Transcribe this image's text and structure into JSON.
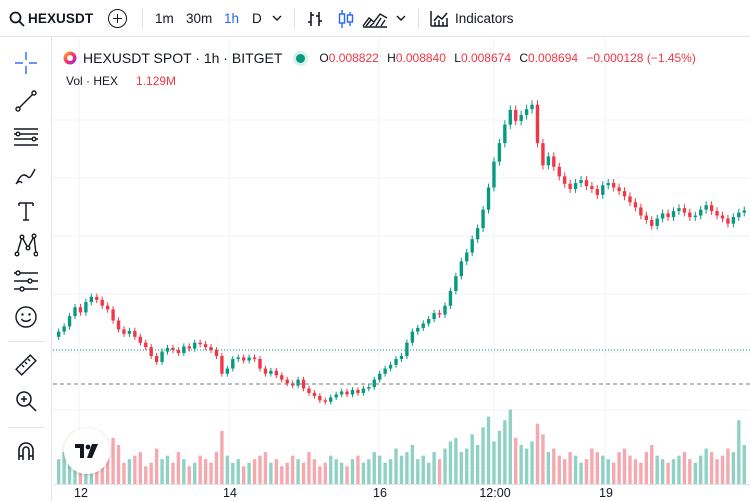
{
  "toolbar": {
    "symbol": "HEXUSDT",
    "intervals": [
      "1m",
      "30m",
      "1h",
      "D"
    ],
    "active_interval": "1h",
    "indicators_label": "Indicators"
  },
  "legend": {
    "title": "HEXUSDT SPOT · 1h · BITGET",
    "o_label": "O",
    "o_value": "0.008822",
    "h_label": "H",
    "h_value": "0.008840",
    "l_label": "L",
    "l_value": "0.008674",
    "c_label": "C",
    "c_value": "0.008694",
    "change": "−0.000128 (−1.45%)",
    "vol_label": "Vol · HEX",
    "vol_value": "1.129M"
  },
  "time_axis": {
    "ticks": [
      "12",
      "14",
      "16",
      "12:00",
      "19"
    ]
  },
  "colors": {
    "up": "#089981",
    "down": "#f23645",
    "up_volume": "#8fd1c5",
    "down_volume": "#f5a8ae",
    "active": "#2962ff"
  },
  "chart_data": {
    "type": "candlestick",
    "title": "HEXUSDT SPOT · 1h · BITGET",
    "x_ticks": [
      "12",
      "14",
      "16",
      "12:00",
      "19"
    ],
    "last_close": 0.008694,
    "series": [
      {
        "name": "price",
        "values": [
          0.00705,
          0.00712,
          0.00726,
          0.00738,
          0.00731,
          0.00745,
          0.00752,
          0.00748,
          0.0074,
          0.00735,
          0.0072,
          0.00708,
          0.00702,
          0.00706,
          0.00698,
          0.0069,
          0.00684,
          0.00672,
          0.00664,
          0.00678,
          0.00683,
          0.0068,
          0.00676,
          0.00685,
          0.00682,
          0.0069,
          0.00688,
          0.00684,
          0.0068,
          0.00672,
          0.00648,
          0.00655,
          0.00668,
          0.0067,
          0.00666,
          0.0067,
          0.00668,
          0.00655,
          0.00648,
          0.00652,
          0.00646,
          0.0064,
          0.00635,
          0.00632,
          0.0064,
          0.00628,
          0.00622,
          0.00618,
          0.00612,
          0.0061,
          0.00616,
          0.0062,
          0.00624,
          0.0062,
          0.00626,
          0.00622,
          0.00628,
          0.0063,
          0.0064,
          0.00648,
          0.00655,
          0.0066,
          0.00668,
          0.00672,
          0.0069,
          0.00705,
          0.0071,
          0.00716,
          0.00722,
          0.0073,
          0.00728,
          0.0074,
          0.0076,
          0.0078,
          0.008,
          0.00812,
          0.0083,
          0.00845,
          0.0087,
          0.009,
          0.00935,
          0.0096,
          0.00985,
          0.01005,
          0.0099,
          0.00998,
          0.01006,
          0.01012,
          0.0096,
          0.0093,
          0.00942,
          0.00928,
          0.00915,
          0.00905,
          0.00898,
          0.00906,
          0.0091,
          0.00902,
          0.00898,
          0.0089,
          0.00903,
          0.00906,
          0.009,
          0.00895,
          0.00888,
          0.0088,
          0.00873,
          0.00862,
          0.00856,
          0.00848,
          0.00858,
          0.00865,
          0.0086,
          0.00868,
          0.00872,
          0.00866,
          0.0086,
          0.00862,
          0.0087,
          0.00876,
          0.00868,
          0.00862,
          0.00858,
          0.00851,
          0.0086,
          0.00866,
          0.00869
        ]
      },
      {
        "name": "volume",
        "values": [
          0.7,
          0.9,
          1.2,
          0.8,
          0.6,
          1.0,
          1.4,
          0.7,
          0.5,
          0.9,
          1.3,
          1.1,
          0.6,
          0.7,
          0.8,
          0.9,
          0.5,
          0.6,
          1.0,
          0.7,
          0.8,
          0.6,
          0.9,
          0.7,
          0.5,
          0.6,
          0.8,
          0.7,
          0.6,
          0.9,
          1.5,
          0.8,
          0.6,
          0.7,
          0.5,
          0.6,
          0.7,
          0.8,
          0.9,
          0.6,
          0.7,
          0.5,
          0.6,
          0.8,
          0.7,
          0.6,
          0.9,
          0.7,
          0.5,
          0.6,
          0.8,
          0.7,
          0.6,
          0.5,
          0.7,
          0.8,
          0.6,
          0.7,
          0.9,
          0.8,
          0.6,
          0.7,
          1.0,
          0.8,
          0.9,
          1.1,
          0.7,
          0.8,
          0.6,
          0.9,
          0.7,
          1.0,
          1.2,
          1.3,
          0.9,
          1.0,
          1.4,
          1.1,
          1.6,
          1.9,
          1.2,
          1.5,
          1.8,
          2.1,
          1.3,
          1.1,
          1.0,
          1.2,
          1.7,
          1.4,
          0.9,
          1.0,
          0.8,
          0.7,
          0.9,
          0.8,
          0.6,
          0.7,
          1.0,
          0.9,
          0.8,
          0.7,
          0.6,
          0.9,
          1.0,
          0.8,
          0.7,
          0.6,
          0.9,
          1.1,
          0.8,
          0.7,
          0.6,
          0.7,
          0.8,
          0.9,
          0.7,
          0.6,
          0.8,
          1.0,
          0.9,
          0.7,
          0.8,
          1.0,
          0.9,
          1.8,
          1.1
        ]
      }
    ]
  }
}
